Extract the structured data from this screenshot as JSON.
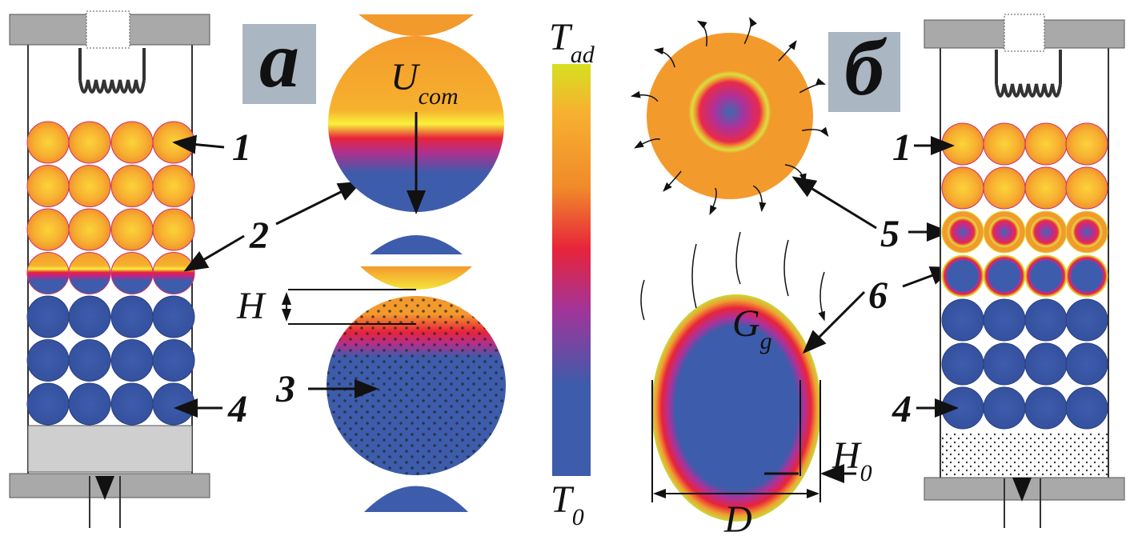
{
  "panel_a": {
    "label": "а",
    "callouts": [
      "1",
      "2",
      "4"
    ]
  },
  "combustion_front": {
    "velocity": {
      "symbol": "U",
      "subscript": "com"
    },
    "height": "H",
    "callout": "3"
  },
  "temperature_scale": {
    "top": {
      "symbol": "T",
      "subscript": "ad"
    },
    "bottom": {
      "symbol": "T",
      "subscript": "0"
    }
  },
  "panel_b": {
    "label": "б",
    "callouts": [
      "5",
      "6"
    ],
    "gas_flow": {
      "symbol": "G",
      "subscript": "g"
    },
    "thickness": {
      "symbol": "H",
      "subscript": "0"
    },
    "diameter": "D",
    "reactor_callouts": [
      "1",
      "4"
    ]
  }
}
